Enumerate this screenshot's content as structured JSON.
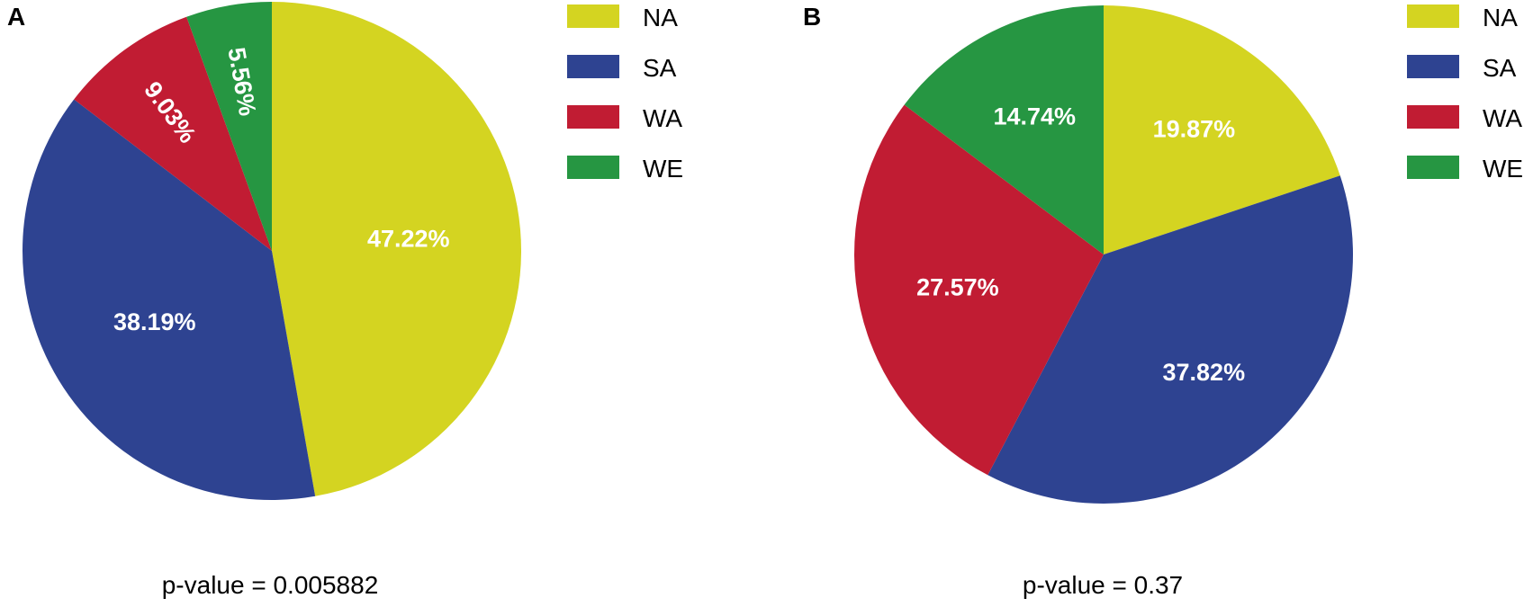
{
  "colors": {
    "NA": "#d4d421",
    "SA": "#2e4391",
    "WA": "#c11c33",
    "WE": "#269642",
    "slice_label": "#ffffff",
    "text": "#000000"
  },
  "chart_data": [
    {
      "type": "pie",
      "panel_label": "A",
      "categories": [
        "NA",
        "SA",
        "WA",
        "WE"
      ],
      "values": [
        47.22,
        38.19,
        9.03,
        5.56
      ],
      "value_labels": [
        "47.22%",
        "38.19%",
        "9.03%",
        "5.56%"
      ],
      "legend": [
        "NA",
        "SA",
        "WA",
        "WE"
      ],
      "legend_position": "top-right",
      "caption": "p-value = 0.005882",
      "start_angle": "12 o'clock",
      "direction": "clockwise"
    },
    {
      "type": "pie",
      "panel_label": "B",
      "categories": [
        "NA",
        "SA",
        "WA",
        "WE"
      ],
      "values": [
        19.87,
        37.82,
        27.57,
        14.74
      ],
      "value_labels": [
        "19.87%",
        "37.82%",
        "27.57%",
        "14.74%"
      ],
      "legend": [
        "NA",
        "SA",
        "WA",
        "WE"
      ],
      "legend_position": "top-right",
      "caption": "p-value = 0.37",
      "start_angle": "12 o'clock",
      "direction": "clockwise"
    }
  ]
}
